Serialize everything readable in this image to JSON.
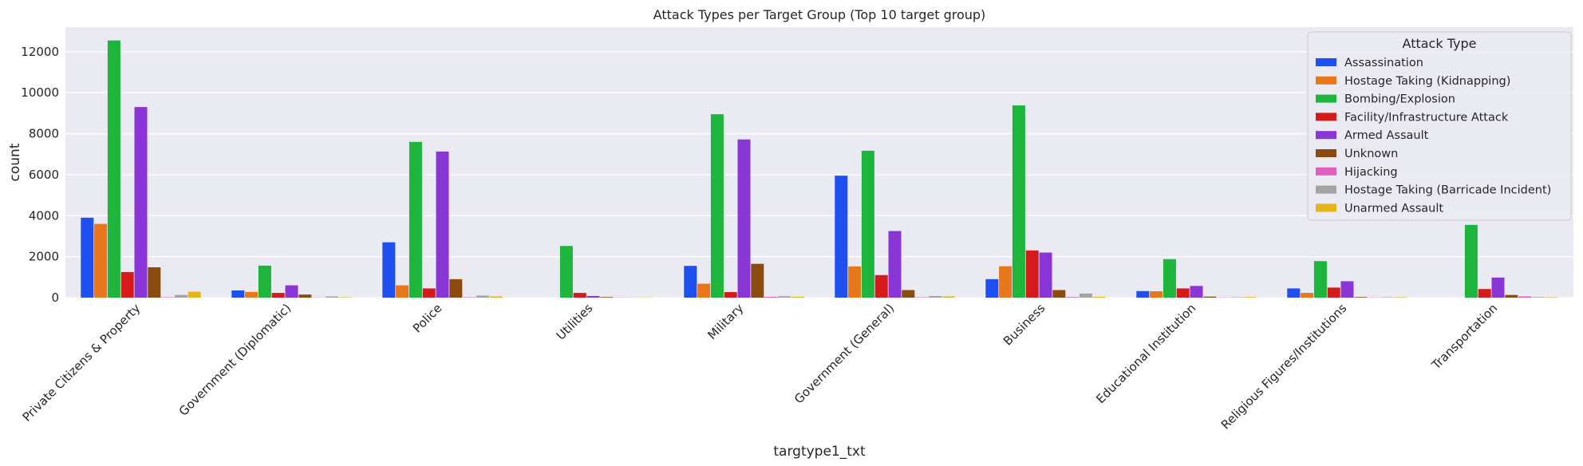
{
  "chart_data": {
    "type": "bar",
    "title": "Attack Types per Target Group (Top 10 target group)",
    "xlabel": "targtype1_txt",
    "ylabel": "count",
    "ylim": [
      0,
      13200
    ],
    "yticks": [
      0,
      2000,
      4000,
      6000,
      8000,
      10000,
      12000
    ],
    "grid": true,
    "legend_title": "Attack Type",
    "legend_position": "top-right",
    "categories": [
      "Private Citizens & Property",
      "Government (Diplomatic)",
      "Police",
      "Utilities",
      "Military",
      "Government (General)",
      "Business",
      "Educational Institution",
      "Religious Figures/Institutions",
      "Transportation"
    ],
    "series": [
      {
        "name": "Assassination",
        "color": "#1f4ff0",
        "values": [
          3900,
          350,
          2700,
          0,
          1550,
          5950,
          900,
          320,
          450,
          0
        ]
      },
      {
        "name": "Hostage Taking (Kidnapping)",
        "color": "#e8761a",
        "values": [
          3600,
          280,
          600,
          0,
          680,
          1520,
          1530,
          310,
          230,
          0
        ]
      },
      {
        "name": "Bombing/Explosion",
        "color": "#1db53b",
        "values": [
          12550,
          1560,
          7600,
          2520,
          8950,
          7170,
          9380,
          1880,
          1780,
          3550
        ]
      },
      {
        "name": "Facility/Infrastructure Attack",
        "color": "#d41a1a",
        "values": [
          1250,
          230,
          450,
          230,
          270,
          1100,
          2300,
          450,
          490,
          420
        ]
      },
      {
        "name": "Armed Assault",
        "color": "#8a35d6",
        "values": [
          9300,
          600,
          7130,
          80,
          7720,
          3250,
          2200,
          570,
          800,
          980
        ]
      },
      {
        "name": "Unknown",
        "color": "#8a4a10",
        "values": [
          1480,
          150,
          900,
          30,
          1650,
          370,
          370,
          50,
          30,
          130
        ]
      },
      {
        "name": "Hijacking",
        "color": "#e35fbf",
        "values": [
          20,
          10,
          20,
          10,
          40,
          20,
          30,
          10,
          10,
          60
        ]
      },
      {
        "name": "Hostage Taking (Barricade Incident)",
        "color": "#a3a3a3",
        "values": [
          130,
          60,
          100,
          10,
          70,
          80,
          200,
          20,
          20,
          30
        ]
      },
      {
        "name": "Unarmed Assault",
        "color": "#e3b51a",
        "values": [
          290,
          20,
          60,
          10,
          40,
          60,
          40,
          30,
          20,
          20
        ]
      }
    ]
  }
}
